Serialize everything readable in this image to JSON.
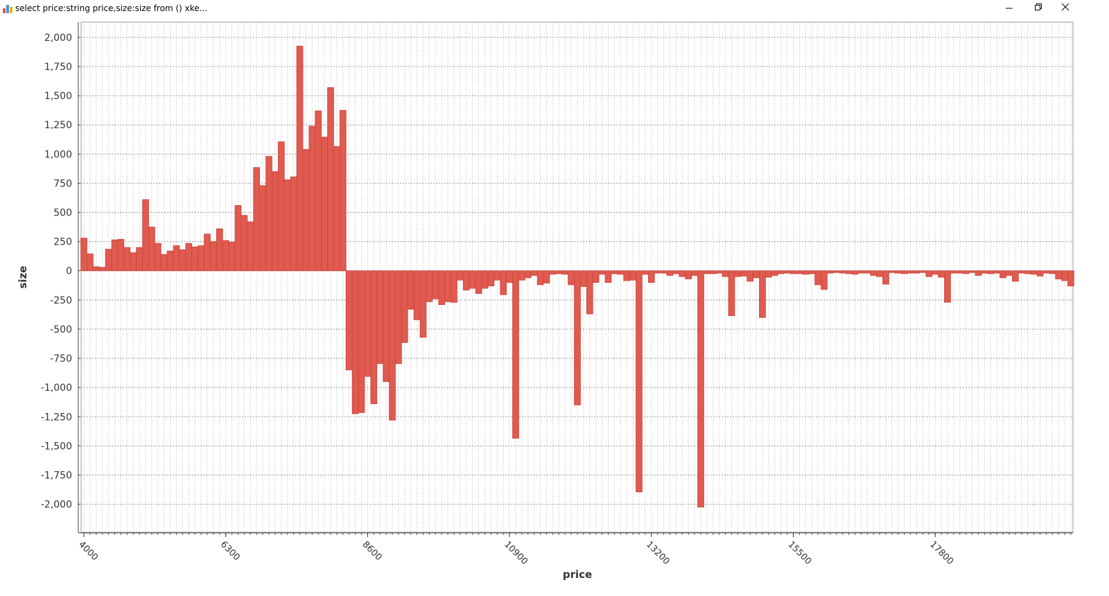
{
  "window": {
    "title": "select price:string price,size:size from () xke..."
  },
  "chart_data": {
    "type": "bar",
    "xlabel": "price",
    "ylabel": "size",
    "color": "#e05a4f",
    "grid": true,
    "x": [
      4000,
      4100,
      4200,
      4300,
      4400,
      4500,
      4600,
      4700,
      4800,
      4900,
      5000,
      5100,
      5200,
      5300,
      5400,
      5500,
      5600,
      5700,
      5800,
      5900,
      6000,
      6100,
      6200,
      6300,
      6400,
      6500,
      6600,
      6700,
      6800,
      6900,
      7000,
      7100,
      7200,
      7300,
      7400,
      7500,
      7600,
      7700,
      7800,
      7900,
      8000,
      8100,
      8200,
      8300,
      8400,
      8500,
      8600,
      8700,
      8800,
      8900,
      9000,
      9100,
      9200,
      9300,
      9400,
      9500,
      9600,
      9700,
      9800,
      9900,
      10000,
      10100,
      10200,
      10300,
      10400,
      10500,
      10600,
      10700,
      10800,
      10900,
      11000,
      11100,
      11200,
      11300,
      11400,
      11500,
      11600,
      11700,
      11800,
      11900,
      12000,
      12100,
      12200,
      12300,
      12400,
      12500,
      12600,
      12700,
      12800,
      12900,
      13000,
      13100,
      13200,
      13300,
      13400,
      13500,
      13600,
      13700,
      13800,
      13900,
      14000,
      14100,
      14200,
      14300,
      14400,
      14500,
      14600,
      14700,
      14800,
      14900,
      15000,
      15100,
      15200,
      15300,
      15400,
      15500,
      15600,
      15700,
      15800,
      15900,
      16000,
      16100,
      16200,
      16300,
      16400,
      16500,
      16600,
      16700,
      16800,
      16900,
      17000,
      17100,
      17200,
      17300,
      17400,
      17500,
      17600,
      17700,
      17800,
      17900,
      18000,
      18100,
      18200,
      18300,
      18400,
      18500,
      18600,
      18700,
      18800,
      18900,
      19000,
      19100,
      19200,
      19300,
      19400,
      19500,
      19600,
      19700,
      19800,
      19900,
      20000
    ],
    "values": [
      280,
      145,
      35,
      30,
      185,
      265,
      270,
      200,
      155,
      200,
      610,
      375,
      235,
      140,
      170,
      215,
      180,
      235,
      205,
      215,
      315,
      250,
      360,
      260,
      245,
      560,
      475,
      420,
      885,
      730,
      980,
      850,
      1105,
      780,
      805,
      1925,
      1040,
      1240,
      1370,
      1145,
      1570,
      1065,
      1375,
      -850,
      -1225,
      -1215,
      -905,
      -1140,
      -795,
      -950,
      -1280,
      -795,
      -615,
      -330,
      -420,
      -570,
      -265,
      -240,
      -290,
      -265,
      -270,
      -80,
      -165,
      -150,
      -195,
      -150,
      -130,
      -80,
      -205,
      -100,
      -1435,
      -80,
      -60,
      -40,
      -120,
      -105,
      -30,
      -25,
      -30,
      -120,
      -1150,
      -135,
      -370,
      -100,
      -30,
      -100,
      -25,
      -30,
      -85,
      -80,
      -1895,
      -30,
      -100,
      -20,
      -20,
      -40,
      -25,
      -50,
      -70,
      -40,
      -2025,
      -25,
      -25,
      -20,
      -50,
      -385,
      -50,
      -45,
      -90,
      -60,
      -400,
      -55,
      -40,
      -25,
      -20,
      -25,
      -25,
      -30,
      -25,
      -120,
      -160,
      -20,
      -15,
      -20,
      -25,
      -30,
      -20,
      -20,
      -40,
      -50,
      -115,
      -15,
      -20,
      -25,
      -20,
      -20,
      -15,
      -50,
      -30,
      -55,
      -270,
      -20,
      -20,
      -25,
      -15,
      -40,
      -20,
      -25,
      -20,
      -60,
      -40,
      -90,
      -20,
      -25,
      -30,
      -45,
      -20,
      -25,
      -70,
      -85,
      -130
    ],
    "xlim": [
      3955,
      20034
    ],
    "xticks": [
      4000,
      6300,
      8600,
      10900,
      13200,
      15500,
      17800
    ],
    "ylim": [
      -2240,
      2130
    ],
    "yticks": [
      {
        "value": 2000,
        "label": "2,000"
      },
      {
        "value": 1750,
        "label": "1,750"
      },
      {
        "value": 1500,
        "label": "1,500"
      },
      {
        "value": 1250,
        "label": "1,250"
      },
      {
        "value": 1000,
        "label": "1,000"
      },
      750,
      500,
      250,
      0,
      -250,
      -500,
      -750,
      {
        "value": -1000,
        "label": "-1,000"
      },
      {
        "value": -1250,
        "label": "-1,250"
      },
      {
        "value": -1500,
        "label": "-1,500"
      },
      {
        "value": -1750,
        "label": "-1,750"
      },
      {
        "value": -2000,
        "label": "-2,000"
      }
    ]
  }
}
